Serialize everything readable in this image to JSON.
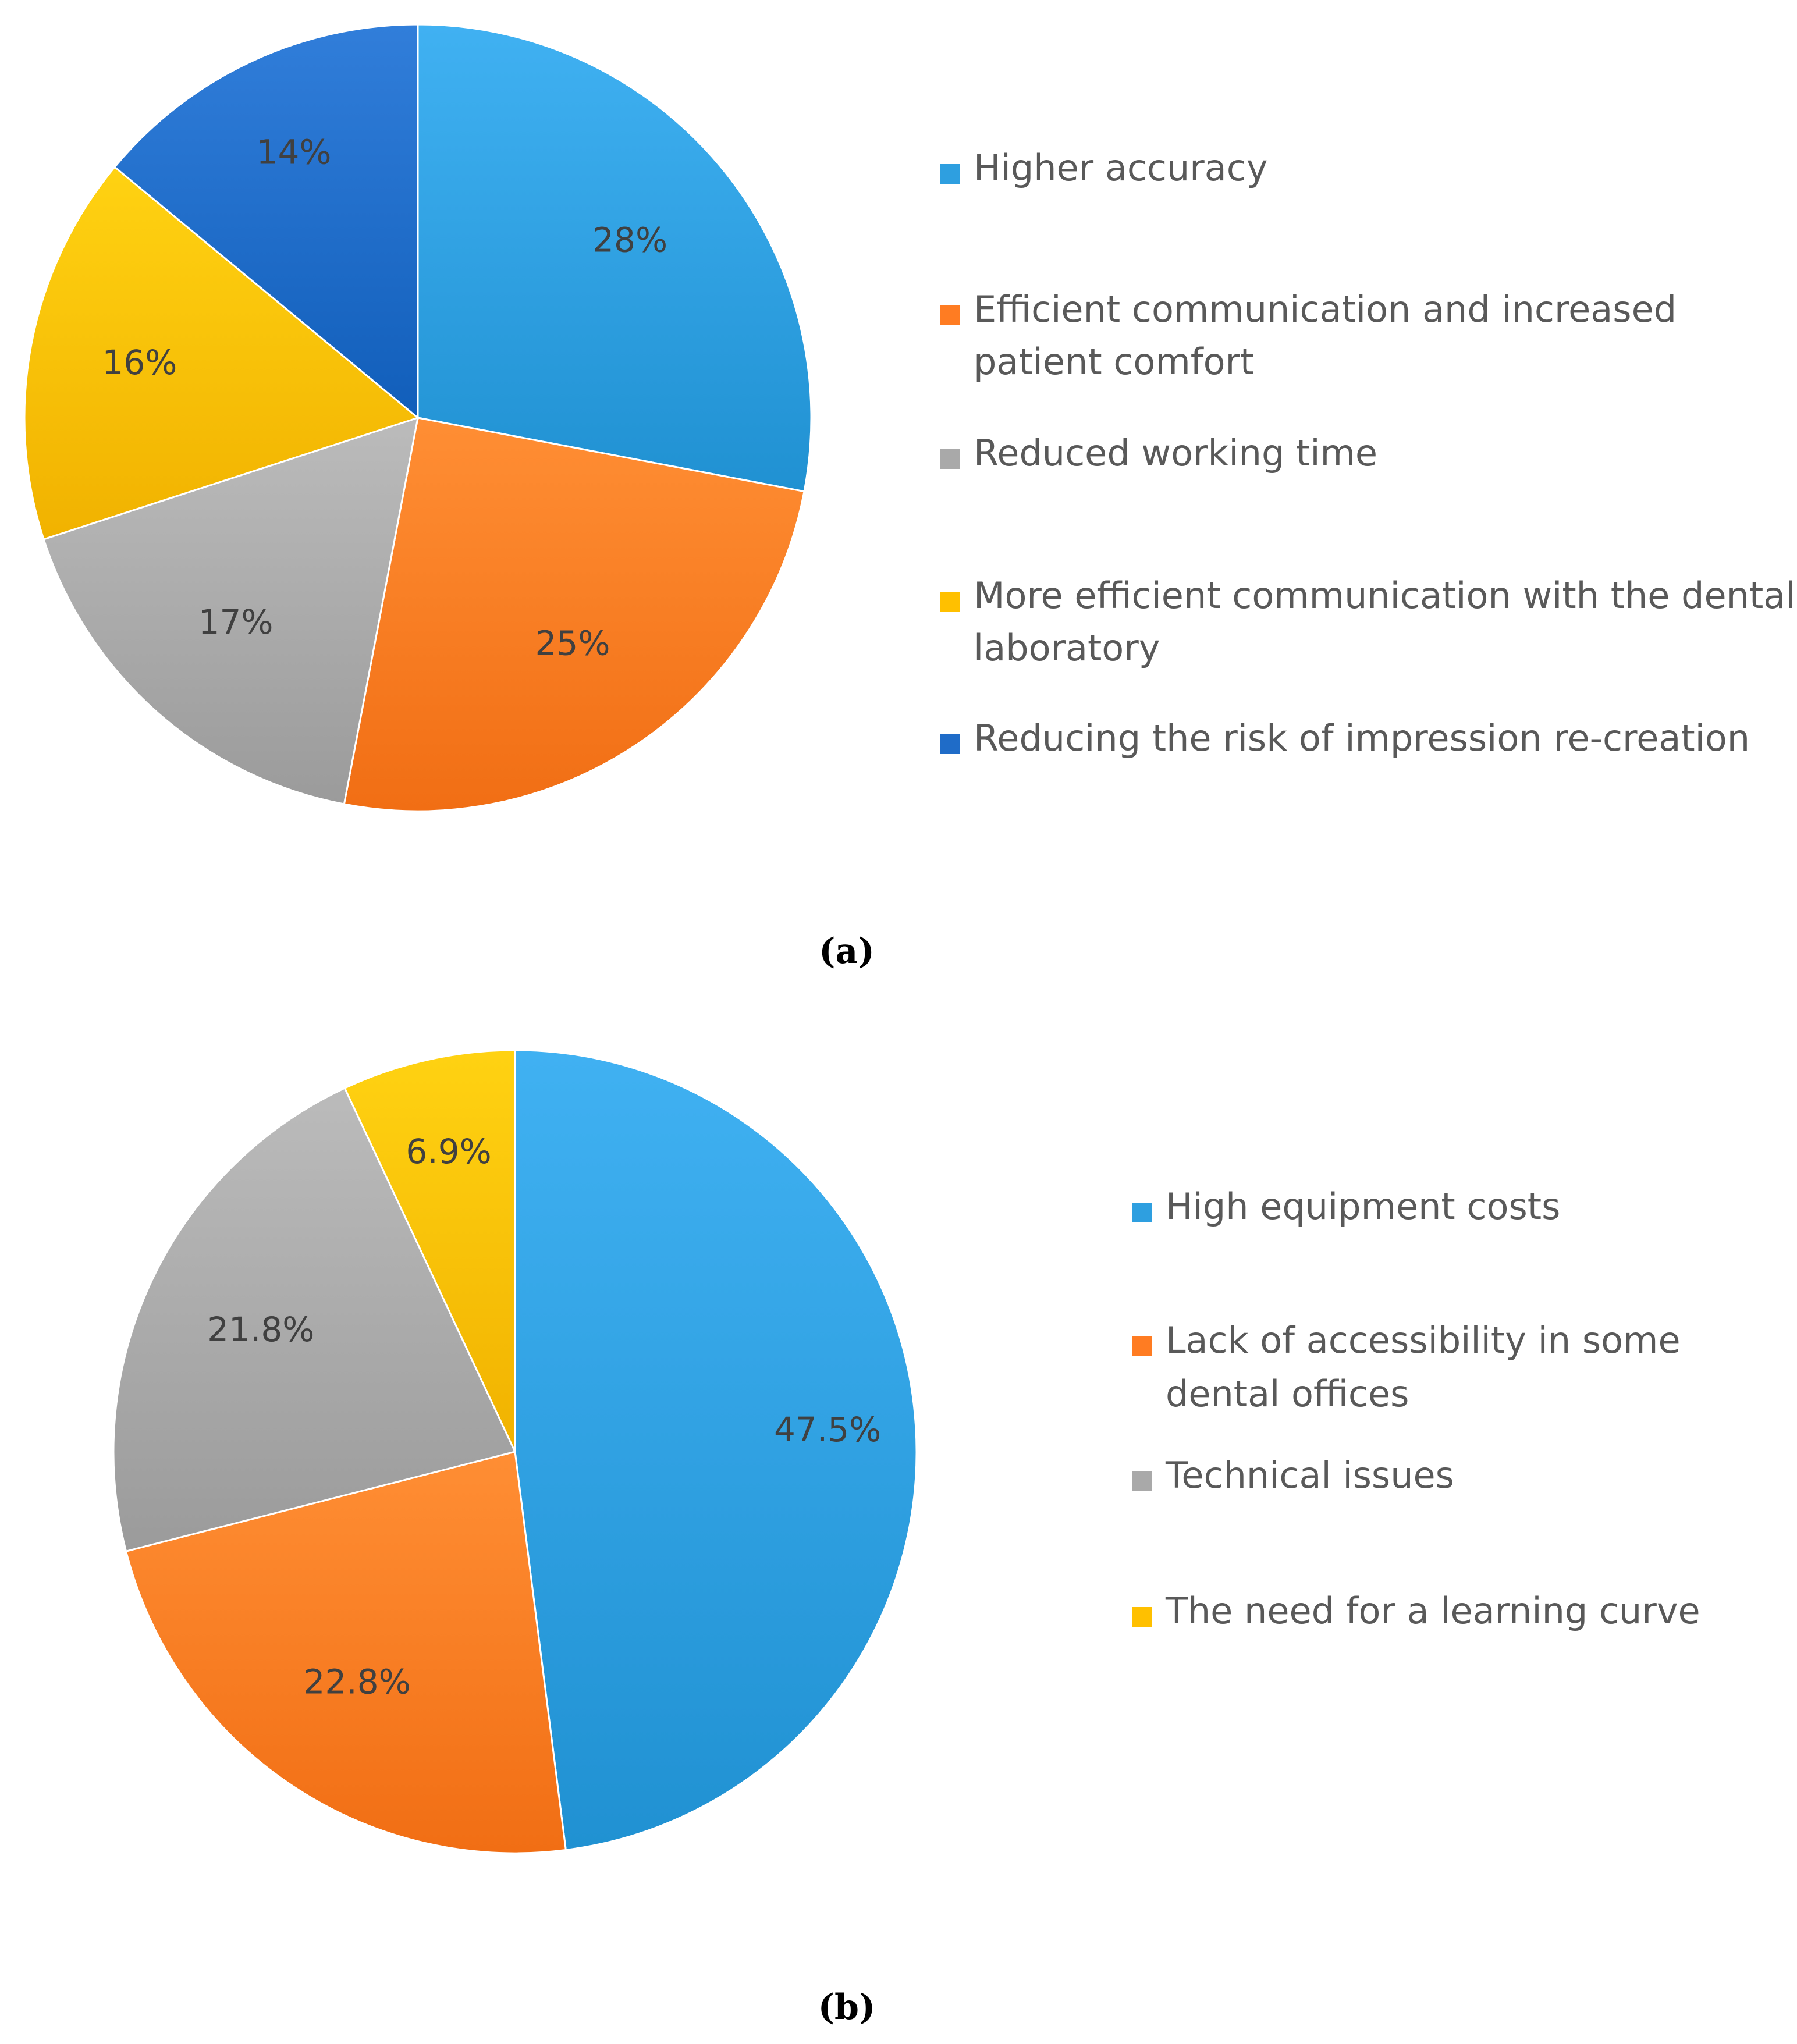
{
  "chart_data": [
    {
      "type": "pie",
      "caption": "(a)",
      "legend_position": "right",
      "slices": [
        {
          "label": "Higher accuracy",
          "value": 28,
          "display": "28%",
          "color": "#2E9FE0"
        },
        {
          "label": "Efficient communication and increased patient comfort",
          "legend_lines": [
            "Efficient communication and increased",
            "patient comfort"
          ],
          "value": 25,
          "display": "25%",
          "color": "#FF7C22"
        },
        {
          "label": "Reduced working time",
          "value": 17,
          "display": "17%",
          "color": "#A9A9A9"
        },
        {
          "label": "More efficient communication with the dental laboratory",
          "legend_lines": [
            "More efficient communication with the dental",
            "laboratory"
          ],
          "value": 16,
          "display": "16%",
          "color": "#FFC000"
        },
        {
          "label": "Reducing the risk of impression re-creation",
          "value": 14,
          "display": "14%",
          "color": "#1F6CC8"
        }
      ]
    },
    {
      "type": "pie",
      "caption": "(b)",
      "legend_position": "right",
      "slices": [
        {
          "label": "High equipment costs",
          "value": 47.5,
          "display": "47.5%",
          "color": "#2E9FE0"
        },
        {
          "label": "Lack of accessibility in some dental offices",
          "legend_lines": [
            "Lack of accessibility in some",
            "dental offices"
          ],
          "value": 22.8,
          "display": "22.8%",
          "color": "#FF7C22"
        },
        {
          "label": "Technical issues",
          "value": 21.8,
          "display": "21.8%",
          "color": "#A9A9A9"
        },
        {
          "label": "The need for a learning curve",
          "value": 6.9,
          "display": "6.9%",
          "color": "#FFC000"
        }
      ]
    }
  ]
}
